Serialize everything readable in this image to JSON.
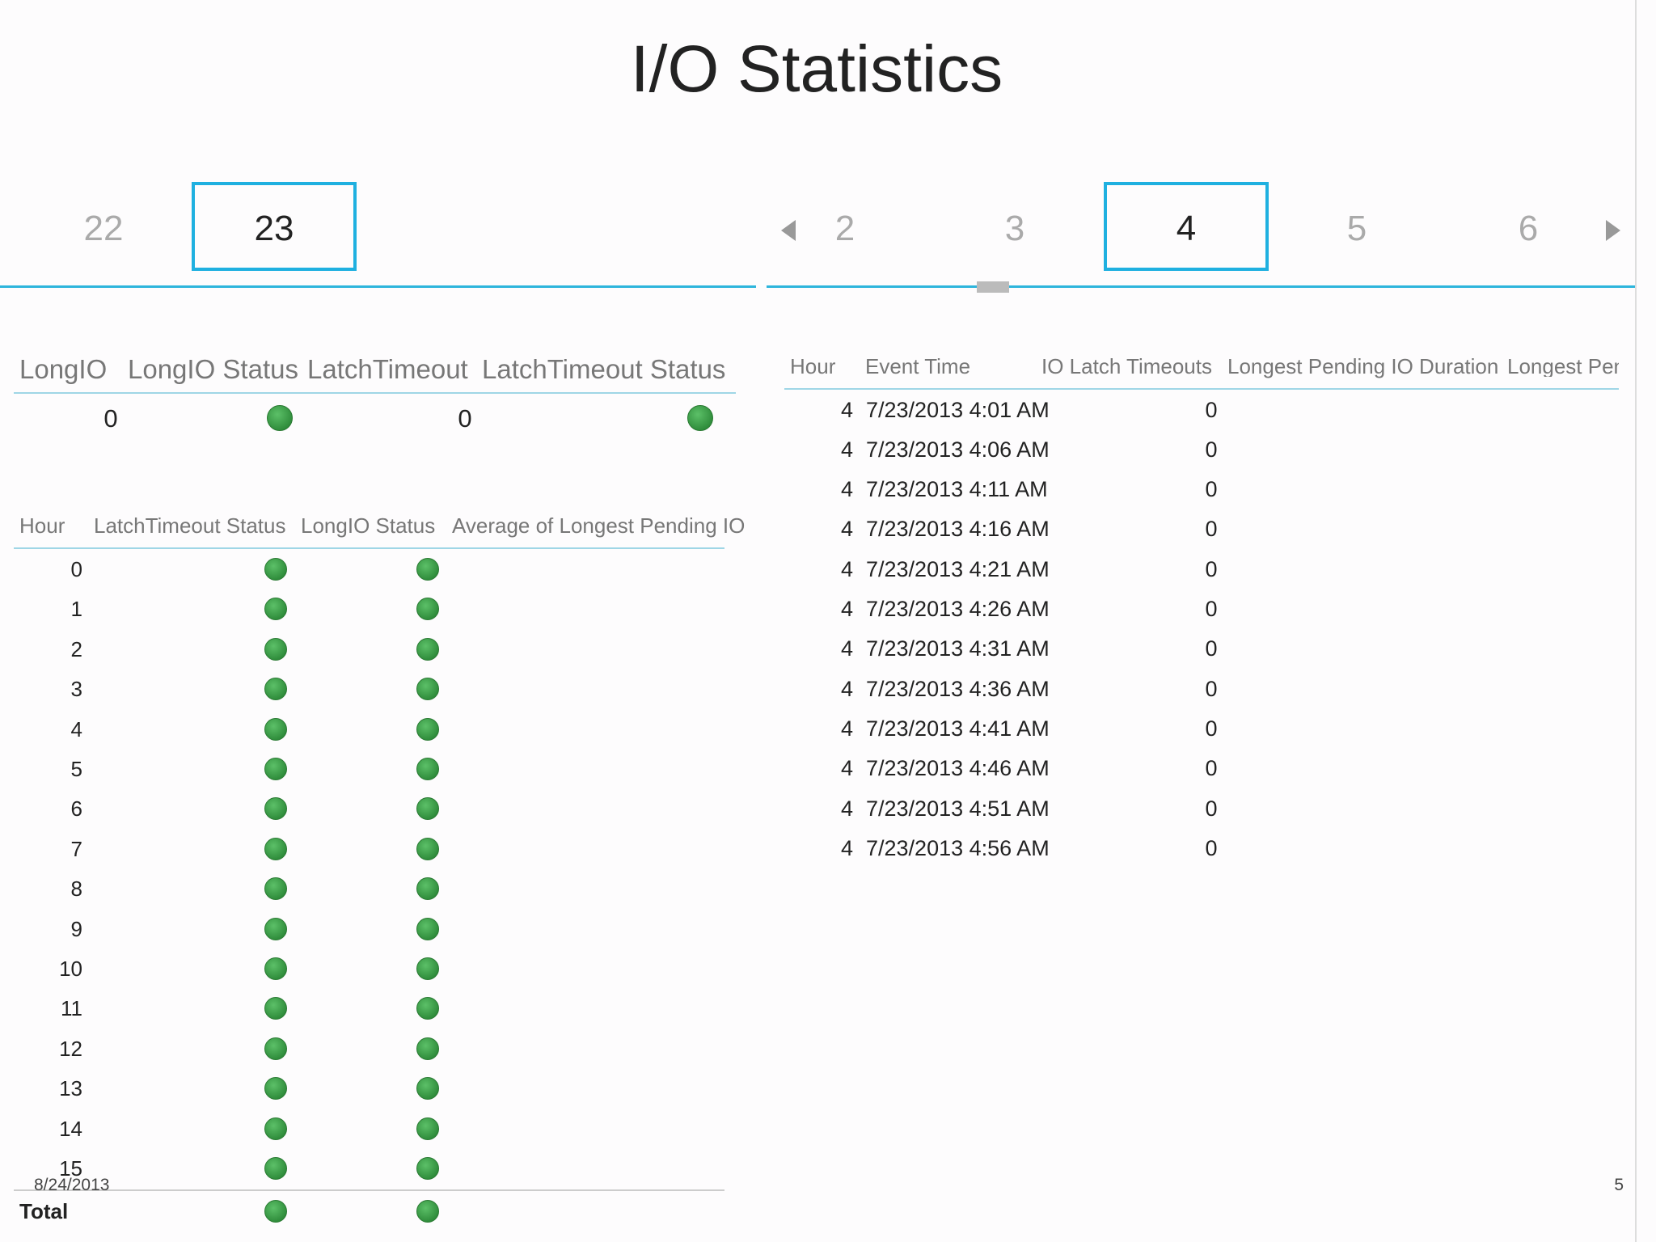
{
  "header": {
    "title": "I/O Statistics"
  },
  "left_slicer": {
    "items": [
      "22",
      "23"
    ],
    "selected": 1
  },
  "right_slicer": {
    "items": [
      "2",
      "3",
      "4",
      "5",
      "6"
    ],
    "selected": 2
  },
  "summary_table": {
    "headers": [
      "LongIO",
      "LongIO Status",
      "LatchTimeout",
      "LatchTimeout Status"
    ],
    "rows": [
      [
        0,
        0
      ]
    ]
  },
  "hour_table": {
    "headers": [
      "Hour",
      "LatchTimeout Status",
      "LongIO Status",
      "Average of Longest Pending IO"
    ],
    "rows": [
      0,
      1,
      2,
      3,
      4,
      5,
      6,
      7,
      8,
      9,
      10,
      11,
      12,
      13,
      14,
      15
    ],
    "total_label": "Total"
  },
  "event_table": {
    "headers": [
      "Hour",
      "Event Time",
      "IO Latch Timeouts",
      "Longest Pending IO Duration",
      "Longest Penc"
    ],
    "rows": [
      [
        4,
        "7/23/2013 4:01 AM",
        0
      ],
      [
        4,
        "7/23/2013 4:06 AM",
        0
      ],
      [
        4,
        "7/23/2013 4:11 AM",
        0
      ],
      [
        4,
        "7/23/2013 4:16 AM",
        0
      ],
      [
        4,
        "7/23/2013 4:21 AM",
        0
      ],
      [
        4,
        "7/23/2013 4:26 AM",
        0
      ],
      [
        4,
        "7/23/2013 4:31 AM",
        0
      ],
      [
        4,
        "7/23/2013 4:36 AM",
        0
      ],
      [
        4,
        "7/23/2013 4:41 AM",
        0
      ],
      [
        4,
        "7/23/2013 4:46 AM",
        0
      ],
      [
        4,
        "7/23/2013 4:51 AM",
        0
      ],
      [
        4,
        "7/23/2013 4:56 AM",
        0
      ]
    ]
  },
  "footer": {
    "date": "8/24/2013",
    "page": "5"
  }
}
